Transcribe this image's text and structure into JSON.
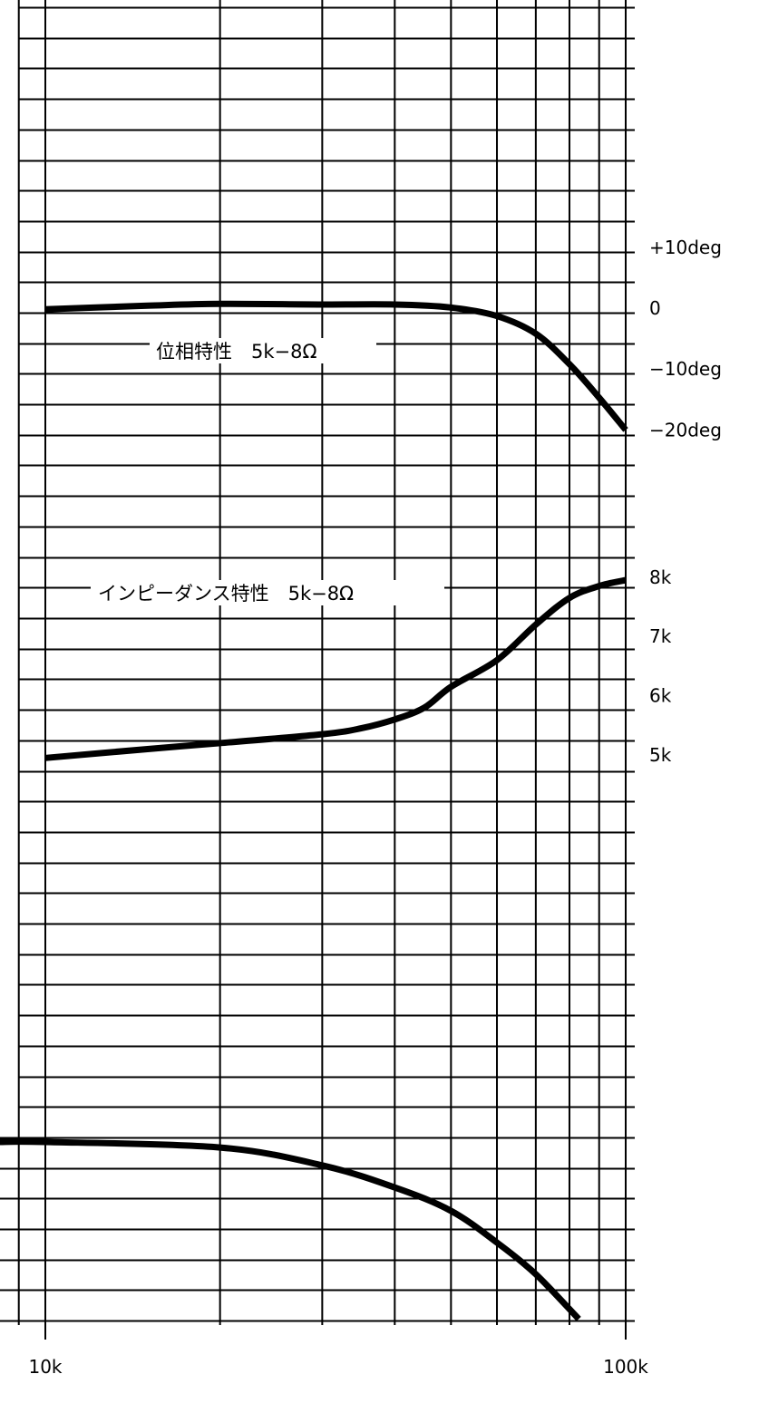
{
  "chart_data": {
    "type": "line",
    "title": "",
    "xlabel": "",
    "ylabel": "",
    "x_scale": "log",
    "x_range_hz": [
      10000,
      100000
    ],
    "x_tick_labels": [
      "10k",
      "100k"
    ],
    "grid": true,
    "line_color": "#000000",
    "right_axis_labels": [
      {
        "text": "+10deg",
        "series": "phase",
        "value": 10
      },
      {
        "text": "0",
        "series": "phase",
        "value": 0
      },
      {
        "text": "−10deg",
        "series": "phase",
        "value": -10
      },
      {
        "text": "−20deg",
        "series": "phase",
        "value": -20
      },
      {
        "text": "8k",
        "series": "impedance",
        "value": 8000
      },
      {
        "text": "7k",
        "series": "impedance",
        "value": 7000
      },
      {
        "text": "6k",
        "series": "impedance",
        "value": 6000
      },
      {
        "text": "5k",
        "series": "impedance",
        "value": 5000
      }
    ],
    "annotations": [
      {
        "text": "位相特性　5k−8Ω",
        "series": "phase"
      },
      {
        "text": "インピーダンス特性　5k−8Ω",
        "series": "impedance"
      }
    ],
    "series": [
      {
        "id": "phase",
        "unit": "deg",
        "points": [
          [
            10000,
            -0.2
          ],
          [
            15000,
            0.4
          ],
          [
            20000,
            0.7
          ],
          [
            30000,
            0.6
          ],
          [
            40000,
            0.6
          ],
          [
            50000,
            0.1
          ],
          [
            60000,
            -1.3
          ],
          [
            70000,
            -4.2
          ],
          [
            80000,
            -9.2
          ],
          [
            90000,
            -14.7
          ],
          [
            100000,
            -20.0
          ]
        ]
      },
      {
        "id": "impedance",
        "unit": "ohm",
        "points": [
          [
            10000,
            4950
          ],
          [
            15000,
            5100
          ],
          [
            20000,
            5200
          ],
          [
            30000,
            5350
          ],
          [
            35000,
            5450
          ],
          [
            40000,
            5600
          ],
          [
            45000,
            5800
          ],
          [
            50000,
            6150
          ],
          [
            60000,
            6600
          ],
          [
            70000,
            7200
          ],
          [
            80000,
            7650
          ],
          [
            90000,
            7850
          ],
          [
            100000,
            7950
          ]
        ]
      },
      {
        "id": "lower-curve",
        "unit": "",
        "points": [
          [
            7000,
            0
          ],
          [
            10000,
            0
          ],
          [
            20000,
            -0.8
          ],
          [
            30000,
            -3.4
          ],
          [
            40000,
            -6.6
          ],
          [
            50000,
            -10.0
          ],
          [
            60000,
            -14.6
          ],
          [
            70000,
            -19.2
          ],
          [
            83000,
            -25.7
          ]
        ]
      }
    ]
  }
}
